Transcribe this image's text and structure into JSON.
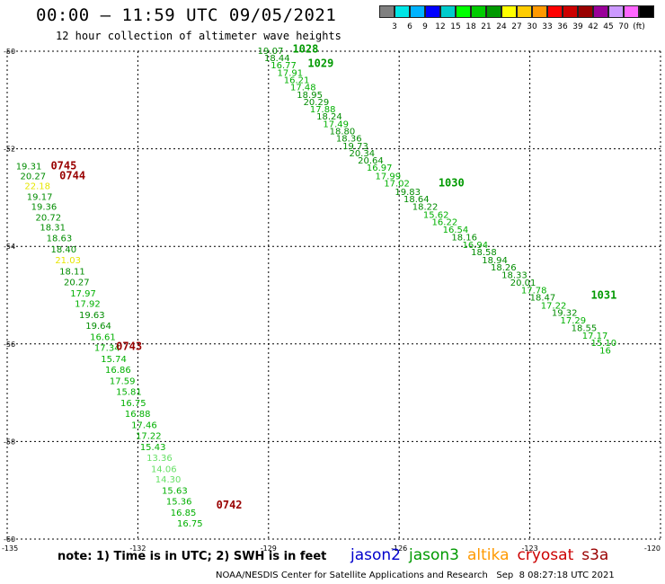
{
  "header": {
    "title": "00:00 – 11:59 UTC 09/05/2021",
    "subtitle": "12 hour collection of altimeter wave heights"
  },
  "colorbar": {
    "colors": [
      "#808080",
      "#00e6e6",
      "#00b3ff",
      "#0000ff",
      "#00cccc",
      "#00ff00",
      "#00cc00",
      "#009900",
      "#ffff00",
      "#ffcc00",
      "#ff9900",
      "#ff0000",
      "#cc0000",
      "#990000",
      "#990099",
      "#cc99ff",
      "#ff66ff",
      "#000000"
    ],
    "labels": [
      "3",
      "6",
      "9",
      "12",
      "15",
      "18",
      "21",
      "24",
      "27",
      "30",
      "33",
      "36",
      "39",
      "42",
      "45",
      "70",
      "(ft)"
    ]
  },
  "chart_data": {
    "type": "scatter",
    "xlim": [
      -135,
      -120
    ],
    "ylim": [
      -60,
      -50
    ],
    "x_ticks": [
      "-135",
      "-132",
      "-129",
      "-126",
      "-123",
      "-120"
    ],
    "y_ticks": [
      "-50",
      "-52",
      "-54",
      "-56",
      "-58",
      "-60"
    ],
    "grid": true,
    "pass_labels": [
      {
        "text": "1028",
        "lon": -128.45,
        "lat": -49.95,
        "color": "#009900"
      },
      {
        "text": "1029",
        "lon": -128.1,
        "lat": -50.25,
        "color": "#009900"
      },
      {
        "text": "1030",
        "lon": -125.1,
        "lat": -52.7,
        "color": "#009900"
      },
      {
        "text": "1031",
        "lon": -121.6,
        "lat": -55.0,
        "color": "#009900"
      },
      {
        "text": "0745",
        "lon": -134.0,
        "lat": -52.35,
        "color": "#990000"
      },
      {
        "text": "0744",
        "lon": -133.8,
        "lat": -52.55,
        "color": "#990000"
      },
      {
        "text": "0743",
        "lon": -132.5,
        "lat": -56.05,
        "color": "#990000"
      },
      {
        "text": "0742",
        "lon": -130.2,
        "lat": -59.3,
        "color": "#990000"
      }
    ],
    "track_east": [
      {
        "v": "19.07",
        "lon": -129.25,
        "lat": -49.98
      },
      {
        "v": "18.44",
        "lon": -129.1,
        "lat": -50.13
      },
      {
        "v": "16.77",
        "lon": -128.95,
        "lat": -50.28
      },
      {
        "v": "17.91",
        "lon": -128.8,
        "lat": -50.43
      },
      {
        "v": "16.21",
        "lon": -128.65,
        "lat": -50.58
      },
      {
        "v": "17.48",
        "lon": -128.5,
        "lat": -50.73
      },
      {
        "v": "18.95",
        "lon": -128.35,
        "lat": -50.88
      },
      {
        "v": "20.29",
        "lon": -128.2,
        "lat": -51.03
      },
      {
        "v": "17.88",
        "lon": -128.05,
        "lat": -51.18
      },
      {
        "v": "18.24",
        "lon": -127.9,
        "lat": -51.33
      },
      {
        "v": "17.49",
        "lon": -127.75,
        "lat": -51.48
      },
      {
        "v": "18.80",
        "lon": -127.6,
        "lat": -51.63
      },
      {
        "v": "18.36",
        "lon": -127.45,
        "lat": -51.78
      },
      {
        "v": "19.73",
        "lon": -127.3,
        "lat": -51.93
      },
      {
        "v": "20.34",
        "lon": -127.15,
        "lat": -52.08
      },
      {
        "v": "20.64",
        "lon": -126.95,
        "lat": -52.23
      },
      {
        "v": "16.97",
        "lon": -126.75,
        "lat": -52.38
      },
      {
        "v": "17.99",
        "lon": -126.55,
        "lat": -52.55
      },
      {
        "v": "17.02",
        "lon": -126.35,
        "lat": -52.7
      },
      {
        "v": "19.83",
        "lon": -126.1,
        "lat": -52.87
      },
      {
        "v": "18.64",
        "lon": -125.9,
        "lat": -53.02
      },
      {
        "v": "18.22",
        "lon": -125.7,
        "lat": -53.18
      },
      {
        "v": "15.62",
        "lon": -125.45,
        "lat": -53.34
      },
      {
        "v": "16.22",
        "lon": -125.25,
        "lat": -53.49
      },
      {
        "v": "16.54",
        "lon": -125.0,
        "lat": -53.65
      },
      {
        "v": "18.16",
        "lon": -124.8,
        "lat": -53.8
      },
      {
        "v": "16.94",
        "lon": -124.55,
        "lat": -53.96
      },
      {
        "v": "18.58",
        "lon": -124.35,
        "lat": -54.11
      },
      {
        "v": "18.94",
        "lon": -124.1,
        "lat": -54.27
      },
      {
        "v": "18.26",
        "lon": -123.9,
        "lat": -54.42
      },
      {
        "v": "18.33",
        "lon": -123.65,
        "lat": -54.58
      },
      {
        "v": "20.01",
        "lon": -123.45,
        "lat": -54.73
      },
      {
        "v": "17.78",
        "lon": -123.2,
        "lat": -54.89
      },
      {
        "v": "18.47",
        "lon": -123.0,
        "lat": -55.04
      },
      {
        "v": "17.22",
        "lon": -122.75,
        "lat": -55.2
      },
      {
        "v": "19.32",
        "lon": -122.5,
        "lat": -55.35
      },
      {
        "v": "17.29",
        "lon": -122.3,
        "lat": -55.51
      },
      {
        "v": "18.55",
        "lon": -122.05,
        "lat": -55.66
      },
      {
        "v": "17.17",
        "lon": -121.8,
        "lat": -55.82
      },
      {
        "v": "15.10",
        "lon": -121.6,
        "lat": -55.97
      },
      {
        "v": "16",
        "lon": -121.4,
        "lat": -56.12
      }
    ],
    "track_west": [
      {
        "v": "19.31",
        "lon": -134.8,
        "lat": -52.35
      },
      {
        "v": "20.27",
        "lon": -134.7,
        "lat": -52.55
      },
      {
        "v": "22.18",
        "lon": -134.6,
        "lat": -52.75
      },
      {
        "v": "19.17",
        "lon": -134.55,
        "lat": -52.97
      },
      {
        "v": "19.36",
        "lon": -134.45,
        "lat": -53.18
      },
      {
        "v": "20.72",
        "lon": -134.35,
        "lat": -53.4
      },
      {
        "v": "18.31",
        "lon": -134.25,
        "lat": -53.6
      },
      {
        "v": "18.63",
        "lon": -134.1,
        "lat": -53.82
      },
      {
        "v": "18.40",
        "lon": -134.0,
        "lat": -54.05
      },
      {
        "v": "21.03",
        "lon": -133.9,
        "lat": -54.27
      },
      {
        "v": "18.11",
        "lon": -133.8,
        "lat": -54.5
      },
      {
        "v": "20.27",
        "lon": -133.7,
        "lat": -54.72
      },
      {
        "v": "17.97",
        "lon": -133.55,
        "lat": -54.95
      },
      {
        "v": "17.92",
        "lon": -133.45,
        "lat": -55.17
      },
      {
        "v": "19.63",
        "lon": -133.35,
        "lat": -55.4
      },
      {
        "v": "19.64",
        "lon": -133.2,
        "lat": -55.62
      },
      {
        "v": "16.61",
        "lon": -133.1,
        "lat": -55.85
      },
      {
        "v": "17.34",
        "lon": -133.0,
        "lat": -56.07
      },
      {
        "v": "15.74",
        "lon": -132.85,
        "lat": -56.3
      },
      {
        "v": "16.86",
        "lon": -132.75,
        "lat": -56.52
      },
      {
        "v": "17.59",
        "lon": -132.65,
        "lat": -56.75
      },
      {
        "v": "15.81",
        "lon": -132.5,
        "lat": -56.97
      },
      {
        "v": "16.75",
        "lon": -132.4,
        "lat": -57.2
      },
      {
        "v": "16.88",
        "lon": -132.3,
        "lat": -57.42
      },
      {
        "v": "17.46",
        "lon": -132.15,
        "lat": -57.65
      },
      {
        "v": "17.22",
        "lon": -132.05,
        "lat": -57.87
      },
      {
        "v": "15.43",
        "lon": -131.95,
        "lat": -58.1
      },
      {
        "v": "13.36",
        "lon": -131.8,
        "lat": -58.32
      },
      {
        "v": "14.06",
        "lon": -131.7,
        "lat": -58.55
      },
      {
        "v": "14.30",
        "lon": -131.6,
        "lat": -58.77
      },
      {
        "v": "15.63",
        "lon": -131.45,
        "lat": -59.0
      },
      {
        "v": "15.36",
        "lon": -131.35,
        "lat": -59.22
      },
      {
        "v": "16.85",
        "lon": -131.25,
        "lat": -59.45
      },
      {
        "v": "16.75",
        "lon": -131.1,
        "lat": -59.67
      }
    ]
  },
  "note": "note: 1) Time is in UTC; 2) SWH is in feet",
  "legend": [
    {
      "name": "jason2",
      "color": "#0000cc"
    },
    {
      "name": "jason3",
      "color": "#009900"
    },
    {
      "name": "altika",
      "color": "#ff9900"
    },
    {
      "name": "cryosat",
      "color": "#cc0000"
    },
    {
      "name": "s3a",
      "color": "#990000"
    }
  ],
  "footer": "NOAA/NESDIS Center for Satellite Applications and Research   Sep  8 08:27:18 UTC 2021"
}
